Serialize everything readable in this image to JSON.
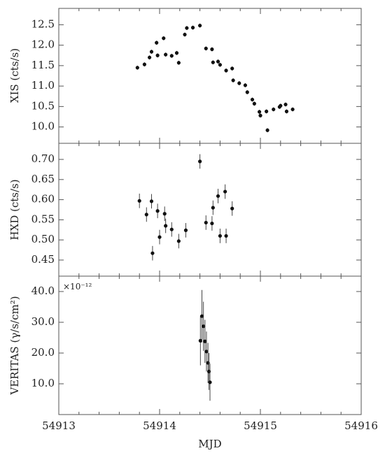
{
  "chart_data": [
    {
      "type": "scatter",
      "ylabel": "XIS (cts/s)",
      "ylim": [
        9.6,
        12.9
      ],
      "yticks": [
        "10.0",
        "10.5",
        "11.0",
        "11.5",
        "12.0",
        "12.5"
      ],
      "xlim": [
        54913,
        54916
      ],
      "series": [
        {
          "points": [
            {
              "x": 54913.78,
              "y": 11.45,
              "err": 0.05
            },
            {
              "x": 54913.85,
              "y": 11.53,
              "err": 0.05
            },
            {
              "x": 54913.9,
              "y": 11.7,
              "err": 0.05
            },
            {
              "x": 54913.92,
              "y": 11.84,
              "err": 0.05
            },
            {
              "x": 54913.97,
              "y": 12.06,
              "err": 0.05
            },
            {
              "x": 54913.98,
              "y": 11.75,
              "err": 0.05
            },
            {
              "x": 54914.04,
              "y": 12.17,
              "err": 0.05
            },
            {
              "x": 54914.06,
              "y": 11.77,
              "err": 0.05
            },
            {
              "x": 54914.12,
              "y": 11.74,
              "err": 0.05
            },
            {
              "x": 54914.17,
              "y": 11.81,
              "err": 0.05
            },
            {
              "x": 54914.19,
              "y": 11.57,
              "err": 0.05
            },
            {
              "x": 54914.25,
              "y": 12.26,
              "err": 0.05
            },
            {
              "x": 54914.27,
              "y": 12.42,
              "err": 0.05
            },
            {
              "x": 54914.33,
              "y": 12.43,
              "err": 0.05
            },
            {
              "x": 54914.4,
              "y": 12.48,
              "err": 0.05
            },
            {
              "x": 54914.46,
              "y": 11.92,
              "err": 0.05
            },
            {
              "x": 54914.52,
              "y": 11.9,
              "err": 0.05
            },
            {
              "x": 54914.53,
              "y": 11.58,
              "err": 0.05
            },
            {
              "x": 54914.58,
              "y": 11.6,
              "err": 0.05
            },
            {
              "x": 54914.6,
              "y": 11.52,
              "err": 0.05
            },
            {
              "x": 54914.66,
              "y": 11.38,
              "err": 0.05
            },
            {
              "x": 54914.72,
              "y": 11.43,
              "err": 0.05
            },
            {
              "x": 54914.73,
              "y": 11.14,
              "err": 0.05
            },
            {
              "x": 54914.79,
              "y": 11.07,
              "err": 0.05
            },
            {
              "x": 54914.85,
              "y": 11.02,
              "err": 0.05
            },
            {
              "x": 54914.87,
              "y": 10.85,
              "err": 0.05
            },
            {
              "x": 54914.92,
              "y": 10.67,
              "err": 0.05
            },
            {
              "x": 54914.94,
              "y": 10.57,
              "err": 0.05
            },
            {
              "x": 54914.99,
              "y": 10.37,
              "err": 0.05
            },
            {
              "x": 54915.0,
              "y": 10.28,
              "err": 0.05
            },
            {
              "x": 54915.06,
              "y": 10.38,
              "err": 0.05
            },
            {
              "x": 54915.07,
              "y": 9.92,
              "err": 0.05
            },
            {
              "x": 54915.13,
              "y": 10.43,
              "err": 0.05
            },
            {
              "x": 54915.19,
              "y": 10.49,
              "err": 0.05
            },
            {
              "x": 54915.2,
              "y": 10.52,
              "err": 0.05
            },
            {
              "x": 54915.25,
              "y": 10.55,
              "err": 0.05
            },
            {
              "x": 54915.26,
              "y": 10.38,
              "err": 0.05
            },
            {
              "x": 54915.32,
              "y": 10.43,
              "err": 0.05
            }
          ]
        }
      ]
    },
    {
      "type": "scatter",
      "ylabel": "HXD (cts/s)",
      "ylim": [
        0.41,
        0.74
      ],
      "yticks": [
        "0.45",
        "0.50",
        "0.55",
        "0.60",
        "0.65",
        "0.70"
      ],
      "xlim": [
        54913,
        54916
      ],
      "series": [
        {
          "points": [
            {
              "x": 54913.8,
              "y": 0.597,
              "err": 0.018
            },
            {
              "x": 54913.87,
              "y": 0.563,
              "err": 0.018
            },
            {
              "x": 54913.92,
              "y": 0.596,
              "err": 0.018
            },
            {
              "x": 54913.93,
              "y": 0.467,
              "err": 0.018
            },
            {
              "x": 54913.98,
              "y": 0.572,
              "err": 0.018
            },
            {
              "x": 54914.0,
              "y": 0.507,
              "err": 0.018
            },
            {
              "x": 54914.05,
              "y": 0.565,
              "err": 0.018
            },
            {
              "x": 54914.06,
              "y": 0.535,
              "err": 0.018
            },
            {
              "x": 54914.12,
              "y": 0.526,
              "err": 0.018
            },
            {
              "x": 54914.19,
              "y": 0.497,
              "err": 0.018
            },
            {
              "x": 54914.26,
              "y": 0.524,
              "err": 0.018
            },
            {
              "x": 54914.4,
              "y": 0.695,
              "err": 0.018
            },
            {
              "x": 54914.46,
              "y": 0.543,
              "err": 0.018
            },
            {
              "x": 54914.52,
              "y": 0.541,
              "err": 0.018
            },
            {
              "x": 54914.53,
              "y": 0.58,
              "err": 0.018
            },
            {
              "x": 54914.58,
              "y": 0.609,
              "err": 0.018
            },
            {
              "x": 54914.6,
              "y": 0.51,
              "err": 0.018
            },
            {
              "x": 54914.65,
              "y": 0.62,
              "err": 0.018
            },
            {
              "x": 54914.66,
              "y": 0.51,
              "err": 0.018
            },
            {
              "x": 54914.72,
              "y": 0.578,
              "err": 0.018
            }
          ]
        }
      ]
    },
    {
      "type": "scatter",
      "ylabel": "VERITAS (γ/s/cm²)",
      "scale_note": "×10⁻¹²",
      "ylim": [
        0,
        45
      ],
      "yticks": [
        "10.0",
        "20.0",
        "30.0",
        "40.0"
      ],
      "xlim": [
        54913,
        54916
      ],
      "xticks": [
        "54913",
        "54914",
        "54915",
        "54916"
      ],
      "xlabel": "MJD",
      "series": [
        {
          "points": [
            {
              "x": 54914.405,
              "y": 24.0,
              "err": 8.0
            },
            {
              "x": 54914.42,
              "y": 32.0,
              "err": 8.5
            },
            {
              "x": 54914.435,
              "y": 28.7,
              "err": 8.0
            },
            {
              "x": 54914.45,
              "y": 23.8,
              "err": 7.0
            },
            {
              "x": 54914.465,
              "y": 20.5,
              "err": 6.5
            },
            {
              "x": 54914.48,
              "y": 16.8,
              "err": 6.5
            },
            {
              "x": 54914.49,
              "y": 14.0,
              "err": 6.0
            },
            {
              "x": 54914.5,
              "y": 10.5,
              "err": 6.0
            }
          ]
        }
      ]
    }
  ]
}
